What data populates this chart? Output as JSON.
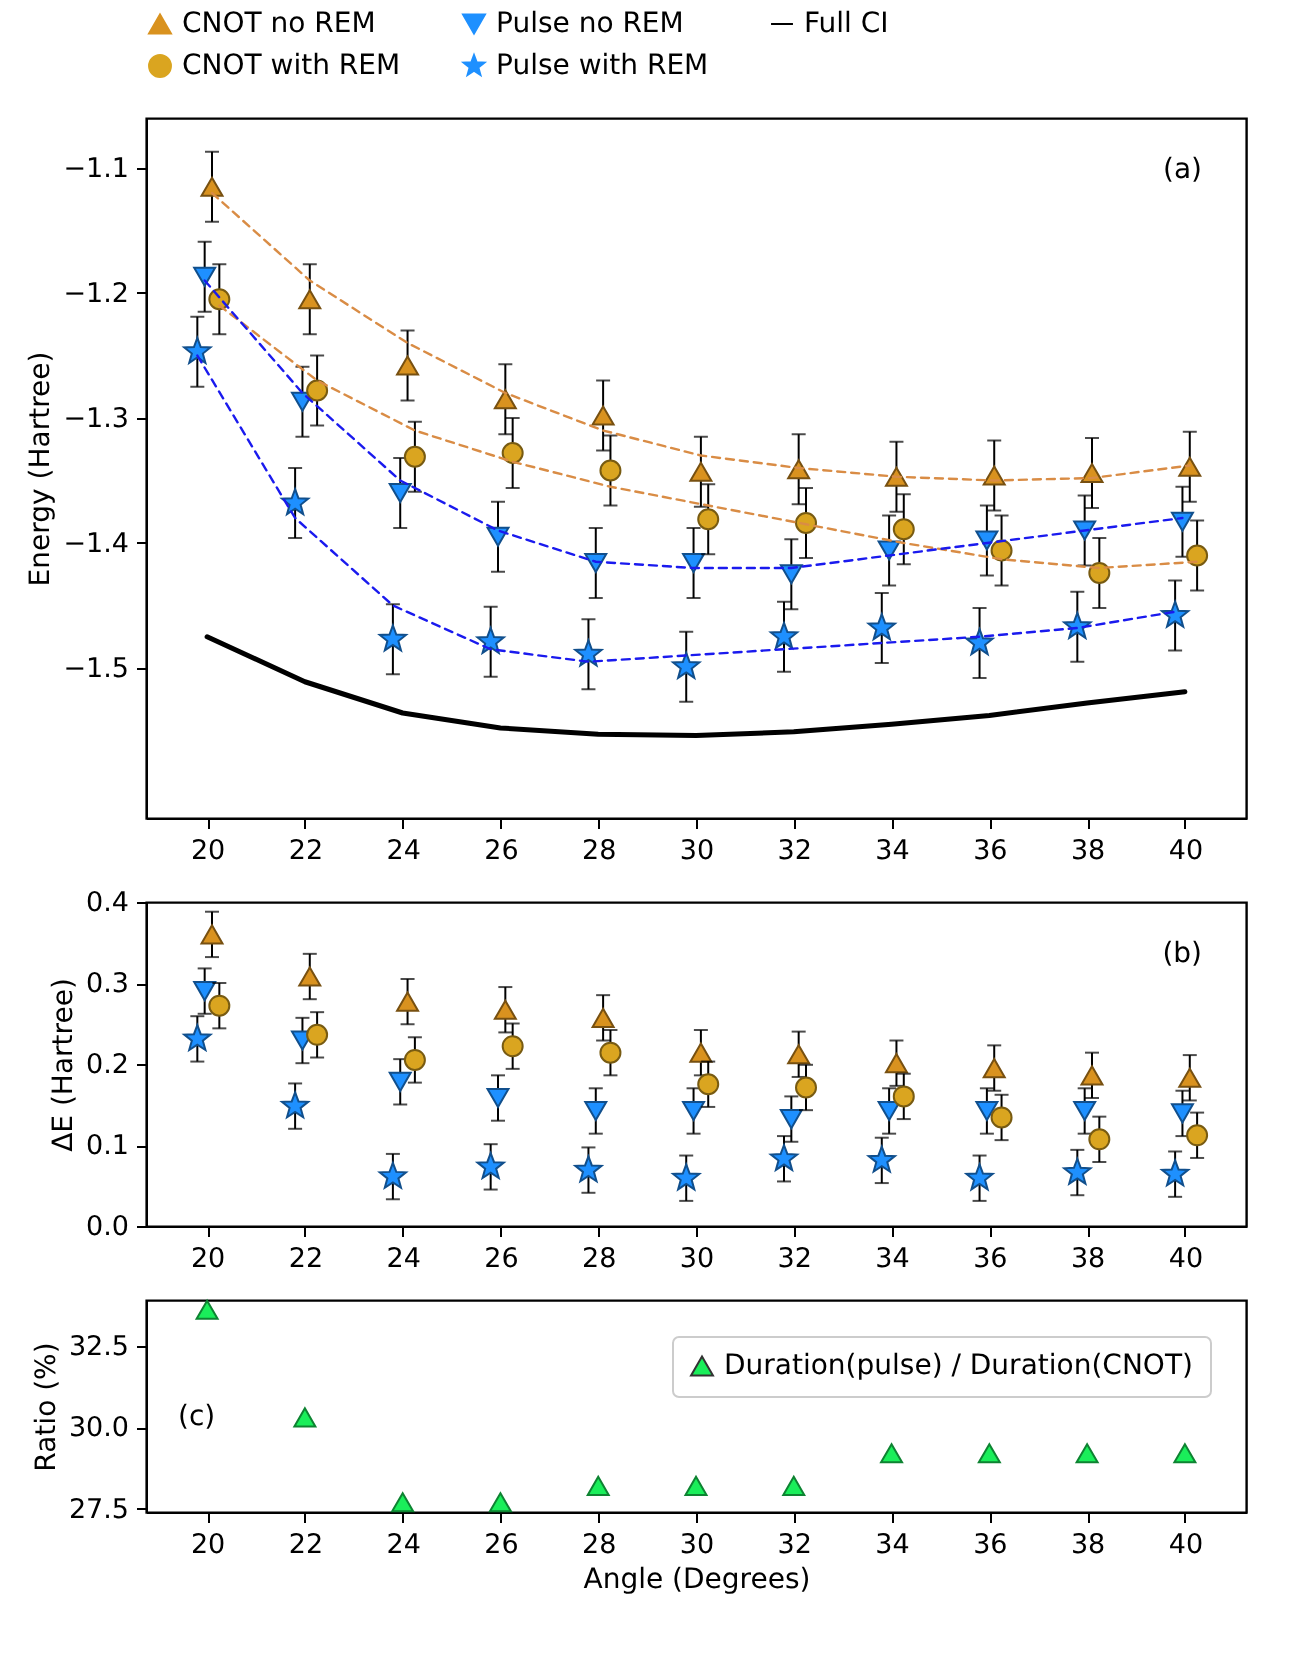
{
  "chart_data": [
    {
      "type": "scatter",
      "xlim": [
        18.75,
        41.25
      ],
      "xticks": [
        20,
        22,
        24,
        26,
        28,
        30,
        32,
        34,
        36,
        38,
        40
      ],
      "ylabel": "Energy (Hartree)",
      "ylim": [
        -1.62,
        -1.06
      ],
      "yticks": [
        {
          "value": -1.5,
          "label": "−1.5"
        },
        {
          "value": -1.4,
          "label": "−1.4"
        },
        {
          "value": -1.3,
          "label": "−1.3"
        },
        {
          "value": -1.2,
          "label": "−1.2"
        },
        {
          "value": -1.1,
          "label": "−1.1"
        }
      ],
      "legend": "top",
      "annotations": [
        "(a)"
      ],
      "series": [
        {
          "name": "CNOT no REM",
          "marker": "triangle",
          "color": "#d9921f",
          "x": [
            20.1,
            22.1,
            24.1,
            26.1,
            28.1,
            30.1,
            32.1,
            34.1,
            36.1,
            38.1,
            40.1
          ],
          "values": [
            -1.115,
            -1.205,
            -1.258,
            -1.285,
            -1.298,
            -1.343,
            -1.341,
            -1.347,
            -1.346,
            -1.344,
            -1.339
          ],
          "errors": [
            0.028,
            0.028,
            0.028,
            0.028,
            0.028,
            0.028,
            0.028,
            0.028,
            0.028,
            0.028,
            0.028
          ]
        },
        {
          "name": "Pulse no REM",
          "marker": "triangle-down",
          "color": "#1e90ff",
          "x": [
            19.95,
            21.95,
            23.95,
            25.95,
            27.95,
            29.95,
            31.95,
            33.95,
            35.95,
            37.95,
            39.95
          ],
          "values": [
            -1.187,
            -1.287,
            -1.36,
            -1.395,
            -1.416,
            -1.416,
            -1.425,
            -1.406,
            -1.398,
            -1.39,
            -1.383
          ],
          "errors": [
            0.028,
            0.028,
            0.028,
            0.028,
            0.028,
            0.028,
            0.028,
            0.028,
            0.028,
            0.028,
            0.028
          ]
        },
        {
          "name": "Full CI",
          "type": "line",
          "color": "#000000",
          "x": [
            20,
            22,
            24,
            26,
            28,
            30,
            32,
            34,
            36,
            38,
            40
          ],
          "values": [
            -1.475,
            -1.511,
            -1.536,
            -1.548,
            -1.553,
            -1.554,
            -1.551,
            -1.545,
            -1.538,
            -1.528,
            -1.519
          ]
        },
        {
          "name": "CNOT with REM",
          "marker": "circle",
          "color": "#daa520",
          "x": [
            20.25,
            22.25,
            24.25,
            26.25,
            28.25,
            30.25,
            32.25,
            34.25,
            36.25,
            38.25,
            40.25
          ],
          "values": [
            -1.205,
            -1.278,
            -1.331,
            -1.328,
            -1.342,
            -1.381,
            -1.384,
            -1.389,
            -1.406,
            -1.424,
            -1.41
          ],
          "errors": [
            0.028,
            0.028,
            0.028,
            0.028,
            0.028,
            0.028,
            0.028,
            0.028,
            0.028,
            0.028,
            0.028
          ]
        },
        {
          "name": "Pulse with REM",
          "marker": "star",
          "color": "#1e90ff",
          "x": [
            19.8,
            21.8,
            23.8,
            25.8,
            27.8,
            29.8,
            31.8,
            33.8,
            35.8,
            37.8,
            39.8
          ],
          "values": [
            -1.247,
            -1.368,
            -1.477,
            -1.479,
            -1.489,
            -1.499,
            -1.475,
            -1.468,
            -1.48,
            -1.467,
            -1.458
          ],
          "errors": [
            0.028,
            0.028,
            0.028,
            0.028,
            0.028,
            0.028,
            0.028,
            0.028,
            0.028,
            0.028,
            0.028
          ]
        },
        {
          "type": "line",
          "line_style": "dashed",
          "color": "#d98c45",
          "x": [
            20.1,
            22.1,
            24.1,
            26.1,
            28.1,
            30.1,
            32.1,
            34.1,
            36.1,
            38.1,
            40.1
          ],
          "values": [
            -1.12,
            -1.19,
            -1.24,
            -1.28,
            -1.31,
            -1.33,
            -1.34,
            -1.347,
            -1.35,
            -1.348,
            -1.338
          ]
        },
        {
          "type": "line",
          "line_style": "dashed",
          "color": "#d98c45",
          "x": [
            20.25,
            22.25,
            24.25,
            26.25,
            28.25,
            30.25,
            32.25,
            34.25,
            36.25,
            38.25,
            40.25
          ],
          "values": [
            -1.21,
            -1.27,
            -1.31,
            -1.335,
            -1.355,
            -1.37,
            -1.385,
            -1.4,
            -1.413,
            -1.42,
            -1.415
          ]
        },
        {
          "type": "line",
          "line_style": "dashed",
          "color": "#1a1aee",
          "x": [
            19.95,
            21.95,
            23.95,
            25.95,
            27.95,
            29.95,
            31.95,
            33.95,
            35.95,
            37.95,
            39.95
          ],
          "values": [
            -1.19,
            -1.28,
            -1.35,
            -1.39,
            -1.415,
            -1.42,
            -1.42,
            -1.41,
            -1.4,
            -1.39,
            -1.38
          ]
        },
        {
          "type": "line",
          "line_style": "dashed",
          "color": "#1a1aee",
          "x": [
            19.8,
            21.8,
            23.8,
            25.8,
            27.8,
            29.8,
            31.8,
            33.8,
            35.8,
            37.8,
            39.8
          ],
          "values": [
            -1.25,
            -1.38,
            -1.45,
            -1.485,
            -1.495,
            -1.49,
            -1.485,
            -1.48,
            -1.475,
            -1.468,
            -1.455
          ]
        }
      ]
    },
    {
      "type": "scatter",
      "xlim": [
        18.75,
        41.25
      ],
      "xticks": [
        20,
        22,
        24,
        26,
        28,
        30,
        32,
        34,
        36,
        38,
        40
      ],
      "ylabel": "ΔE (Hartree)",
      "ylim": [
        0,
        0.4
      ],
      "yticks": [
        {
          "value": 0,
          "label": "0.0"
        },
        0.1,
        0.2,
        0.3,
        0.4
      ],
      "annotations": [
        "(b)"
      ],
      "series": [
        {
          "marker": "triangle",
          "color": "#d9921f",
          "x": [
            20.1,
            22.1,
            24.1,
            26.1,
            28.1,
            30.1,
            32.1,
            34.1,
            36.1,
            38.1,
            40.1
          ],
          "values": [
            0.36,
            0.308,
            0.277,
            0.267,
            0.257,
            0.214,
            0.212,
            0.201,
            0.195,
            0.186,
            0.183
          ],
          "errors": [
            0.028,
            0.028,
            0.028,
            0.028,
            0.028,
            0.028,
            0.028,
            0.028,
            0.028,
            0.028,
            0.028
          ]
        },
        {
          "marker": "triangle-down",
          "color": "#1e90ff",
          "x": [
            19.95,
            21.95,
            23.95,
            25.95,
            27.95,
            29.95,
            31.95,
            33.95,
            35.95,
            37.95,
            39.95
          ],
          "values": [
            0.29,
            0.229,
            0.178,
            0.158,
            0.142,
            0.142,
            0.132,
            0.142,
            0.142,
            0.142,
            0.139
          ],
          "errors": [
            0.028,
            0.028,
            0.028,
            0.028,
            0.028,
            0.028,
            0.028,
            0.028,
            0.028,
            0.028,
            0.028
          ]
        },
        {
          "marker": "circle",
          "color": "#daa520",
          "x": [
            20.25,
            22.25,
            24.25,
            26.25,
            28.25,
            30.25,
            32.25,
            34.25,
            36.25,
            38.25,
            40.25
          ],
          "values": [
            0.272,
            0.236,
            0.205,
            0.222,
            0.214,
            0.175,
            0.171,
            0.16,
            0.134,
            0.107,
            0.112
          ],
          "errors": [
            0.028,
            0.028,
            0.028,
            0.028,
            0.028,
            0.028,
            0.028,
            0.028,
            0.028,
            0.028,
            0.028
          ]
        },
        {
          "marker": "star",
          "color": "#1e90ff",
          "x": [
            19.8,
            21.8,
            23.8,
            25.8,
            27.8,
            29.8,
            31.8,
            33.8,
            35.8,
            37.8,
            39.8
          ],
          "values": [
            0.231,
            0.148,
            0.061,
            0.073,
            0.069,
            0.059,
            0.083,
            0.081,
            0.059,
            0.066,
            0.064
          ],
          "errors": [
            0.028,
            0.028,
            0.028,
            0.028,
            0.028,
            0.028,
            0.028,
            0.028,
            0.028,
            0.028,
            0.028
          ]
        }
      ]
    },
    {
      "type": "scatter",
      "xlim": [
        18.75,
        41.25
      ],
      "xticks": [
        20,
        22,
        24,
        26,
        28,
        30,
        32,
        34,
        36,
        38,
        40
      ],
      "xlabel": "Angle (Degrees)",
      "ylabel": "Ratio (%)",
      "ylim": [
        27.4,
        33.9
      ],
      "yticks": [
        27.5,
        {
          "value": 30,
          "label": "30.0"
        },
        32.5
      ],
      "legend": "top right",
      "annotations": [
        "(c)"
      ],
      "series": [
        {
          "name": "Duration(pulse) / Duration(CNOT)",
          "marker": "triangle",
          "color": "#1aee5a",
          "x": [
            20,
            22,
            24,
            26,
            28,
            30,
            32,
            34,
            36,
            38,
            40
          ],
          "values": [
            33.6,
            30.3,
            27.7,
            27.7,
            28.2,
            28.2,
            28.2,
            29.2,
            29.2,
            29.2,
            29.2
          ]
        }
      ]
    }
  ]
}
